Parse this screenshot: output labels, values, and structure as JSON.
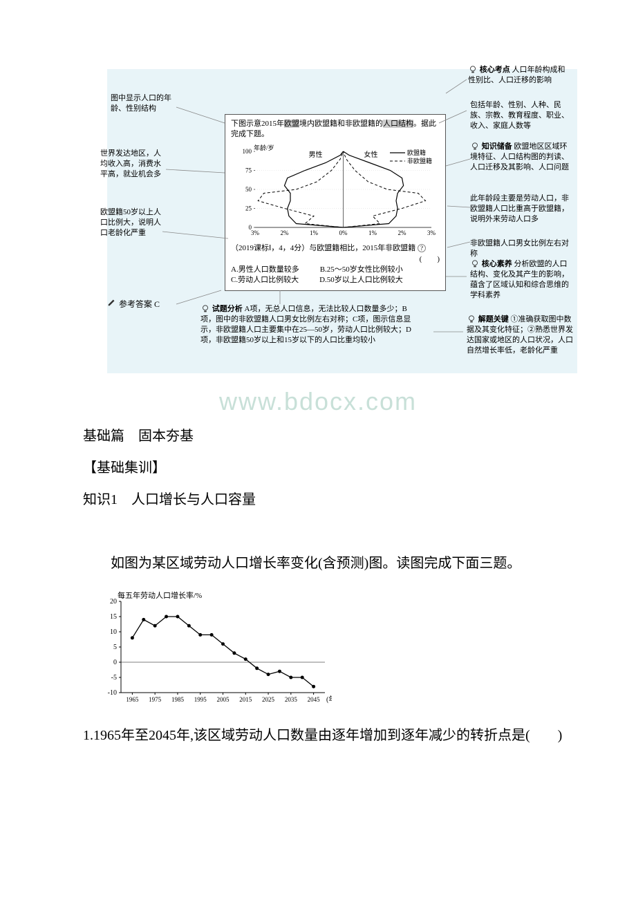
{
  "diagram": {
    "bg": "#e8f4f8",
    "annotations": {
      "core_exam": {
        "label": "核心考点",
        "text": "人口年龄构成和性别比、人口迁移的影响"
      },
      "left1": "图中显示人口的年龄、性别结构",
      "left2": "世界发达地区，人均收入高，消费水平高，就业机会多",
      "left3": "欧盟籍50岁以上人口比例大，说明人口老龄化严重",
      "right1": "包括年龄、性别、人种、民族、宗教、教育程度、职业、收入、家庭人数等",
      "right2": {
        "label": "知识储备",
        "text": "欧盟地区区域环境特征、人口结构图的判读、人口迁移及其影响、人口问题"
      },
      "right3": "此年龄段主要是劳动人口，非欧盟籍人口比重高于欧盟籍，说明外来劳动人口多",
      "right4": "非欧盟籍人口男女比例左右对称",
      "core_lit": {
        "label": "核心素养",
        "text": "分析欧盟的人口结构、变化及其产生的影响，蕴含了区域认知和综合思维的学科素养"
      },
      "answer_label": "参考答案",
      "answer_value": "C",
      "analysis": {
        "label": "试题分析",
        "text": "A项，无总人口信息，无法比较人口数量多少；B项，图中的非欧盟籍人口男女比例左右对称；C项，图示信息显示，非欧盟籍人口主要集中在25—50岁，劳动人口比例较大；D项，非欧盟籍50岁以上和15岁以下的人口比重均较小"
      },
      "key": {
        "label": "解题关键",
        "text": "①准确获取图中数据及其变化特征；②熟悉世界发达国家或地区的人口状况，人口自然增长率低，老龄化严重"
      }
    },
    "stem": {
      "intro": "下图示意2015年欧盟境内欧盟籍和非欧盟籍的人口结构。据此完成下题。",
      "hl1": "欧盟",
      "hl2": "人口结构",
      "chart": {
        "y_label": "年龄/岁",
        "y_ticks": [
          0,
          25,
          50,
          75,
          100
        ],
        "x_ticks_left": [
          "3%",
          "2%",
          "1%",
          "0%"
        ],
        "x_ticks_right": [
          "1%",
          "2%",
          "3%"
        ],
        "male": "男性",
        "female": "女性",
        "legend_eu": "欧盟籍",
        "legend_non": "非欧盟籍",
        "eu_color": "#000000",
        "non_color": "#000000",
        "series_eu_male": [
          [
            0.0,
            0
          ],
          [
            1.6,
            5
          ],
          [
            1.85,
            15
          ],
          [
            1.9,
            25
          ],
          [
            1.8,
            35
          ],
          [
            1.8,
            45
          ],
          [
            2.0,
            55
          ],
          [
            1.9,
            65
          ],
          [
            1.3,
            75
          ],
          [
            0.6,
            85
          ],
          [
            0.1,
            95
          ],
          [
            0,
            100
          ]
        ],
        "series_eu_female": [
          [
            0.0,
            0
          ],
          [
            1.55,
            5
          ],
          [
            1.8,
            15
          ],
          [
            1.85,
            25
          ],
          [
            1.8,
            35
          ],
          [
            1.85,
            45
          ],
          [
            2.05,
            55
          ],
          [
            2.0,
            65
          ],
          [
            1.6,
            75
          ],
          [
            0.9,
            85
          ],
          [
            0.2,
            95
          ],
          [
            0,
            100
          ]
        ],
        "series_non_male": [
          [
            0.0,
            0
          ],
          [
            1.3,
            5
          ],
          [
            1.0,
            15
          ],
          [
            2.0,
            25
          ],
          [
            2.9,
            35
          ],
          [
            2.7,
            45
          ],
          [
            1.6,
            50
          ],
          [
            0.9,
            60
          ],
          [
            0.4,
            75
          ],
          [
            0.1,
            90
          ],
          [
            0,
            100
          ]
        ],
        "series_non_female": [
          [
            0.0,
            0
          ],
          [
            1.25,
            5
          ],
          [
            1.0,
            15
          ],
          [
            2.0,
            25
          ],
          [
            2.8,
            35
          ],
          [
            2.55,
            45
          ],
          [
            1.5,
            50
          ],
          [
            0.85,
            60
          ],
          [
            0.4,
            75
          ],
          [
            0.1,
            90
          ],
          [
            0,
            100
          ]
        ]
      },
      "question_src": "（2019课标Ⅰ，4，4分）与欧盟籍相比，2015年非欧盟籍",
      "blank": "(　　)",
      "options": {
        "A": "A.男性人口数量较多",
        "B": "B.25～50岁女性比例较小",
        "C": "C.劳动人口比例较大",
        "D": "D.50岁以上人口比例较大"
      }
    }
  },
  "watermark": "www.bdocx.com",
  "body": {
    "h1": "基础篇　固本夯基",
    "h2": "【基础集训】",
    "h3": "知识1　人口增长与人口容量",
    "lead": "如图为某区域劳动人口增长率变化(含预测)图。读图完成下面三题。",
    "chart2": {
      "title": "每五年劳动人口增长率/%",
      "y_ticks": [
        -10,
        -5,
        0,
        5,
        10,
        15,
        20
      ],
      "x_ticks": [
        1965,
        1975,
        1985,
        1995,
        2005,
        2015,
        2025,
        2035,
        2045
      ],
      "x_label": "(年)",
      "points": [
        [
          1965,
          8
        ],
        [
          1970,
          14
        ],
        [
          1975,
          12
        ],
        [
          1980,
          15
        ],
        [
          1985,
          15
        ],
        [
          1990,
          12
        ],
        [
          1995,
          9
        ],
        [
          2000,
          9
        ],
        [
          2005,
          6
        ],
        [
          2010,
          3
        ],
        [
          2015,
          1
        ],
        [
          2020,
          -2
        ],
        [
          2025,
          -4
        ],
        [
          2030,
          -3
        ],
        [
          2035,
          -5
        ],
        [
          2040,
          -5
        ],
        [
          2045,
          -8
        ]
      ],
      "line_color": "#000",
      "bg": "#fff"
    },
    "q1": "1.1965年至2045年,该区域劳动人口数量由逐年增加到逐年减少的转折点是(　　)"
  }
}
